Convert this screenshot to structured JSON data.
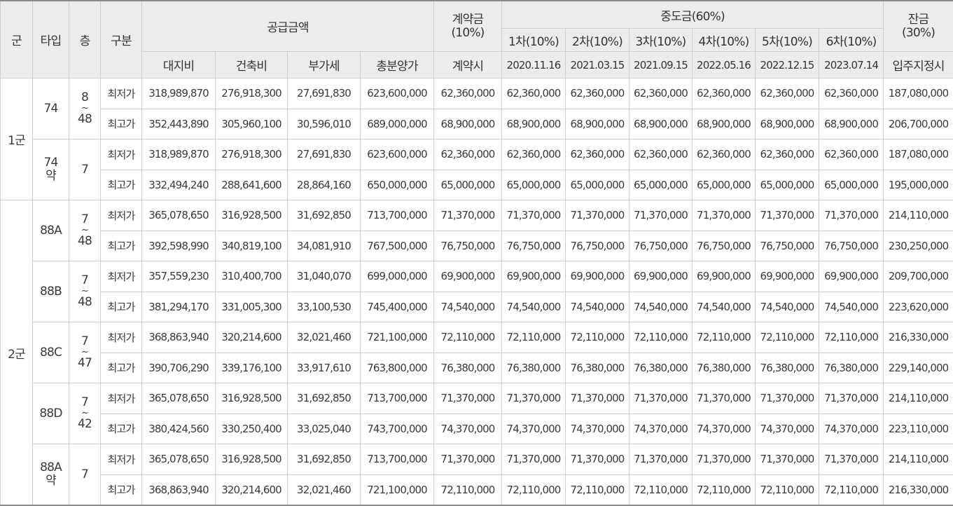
{
  "header": {
    "group": "군",
    "type": "타입",
    "floor": "층",
    "category": "구분",
    "supply": "공급금액",
    "supply_cols": [
      "대지비",
      "건축비",
      "부가세",
      "총분양가"
    ],
    "contract_l1": "계약금",
    "contract_l2": "(10%)",
    "contract_sub": "계약시",
    "middle": "중도금(60%)",
    "middle_cols": [
      "1차(10%)",
      "2차(10%)",
      "3차(10%)",
      "4차(10%)",
      "5차(10%)",
      "6차(10%)"
    ],
    "middle_dates": [
      "2020.11.16",
      "2021.03.15",
      "2021.09.15",
      "2022.05.16",
      "2022.12.15",
      "2023.07.14"
    ],
    "balance_l1": "잔금",
    "balance_l2": "(30%)",
    "balance_sub": "입주지정시"
  },
  "groups": [
    {
      "label": "1군",
      "types": [
        {
          "type_l1": "74",
          "type_l2": "",
          "floor_top": "8",
          "floor_tilde": "~",
          "floor_bottom": "48",
          "rows": [
            {
              "kind": "최저가",
              "land": "318,989,870",
              "build": "276,918,300",
              "vat": "27,691,830",
              "total": "623,600,000",
              "contract": "62,360,000",
              "m1": "62,360,000",
              "m2": "62,360,000",
              "m3": "62,360,000",
              "m4": "62,360,000",
              "m5": "62,360,000",
              "m6": "62,360,000",
              "balance": "187,080,000"
            },
            {
              "kind": "최고가",
              "land": "352,443,890",
              "build": "305,960,100",
              "vat": "30,596,010",
              "total": "689,000,000",
              "contract": "68,900,000",
              "m1": "68,900,000",
              "m2": "68,900,000",
              "m3": "68,900,000",
              "m4": "68,900,000",
              "m5": "68,900,000",
              "m6": "68,900,000",
              "balance": "206,700,000"
            }
          ]
        },
        {
          "type_l1": "74",
          "type_l2": "약",
          "floor_top": "7",
          "floor_tilde": "",
          "floor_bottom": "",
          "rows": [
            {
              "kind": "최저가",
              "land": "318,989,870",
              "build": "276,918,300",
              "vat": "27,691,830",
              "total": "623,600,000",
              "contract": "62,360,000",
              "m1": "62,360,000",
              "m2": "62,360,000",
              "m3": "62,360,000",
              "m4": "62,360,000",
              "m5": "62,360,000",
              "m6": "62,360,000",
              "balance": "187,080,000"
            },
            {
              "kind": "최고가",
              "land": "332,494,240",
              "build": "288,641,600",
              "vat": "28,864,160",
              "total": "650,000,000",
              "contract": "65,000,000",
              "m1": "65,000,000",
              "m2": "65,000,000",
              "m3": "65,000,000",
              "m4": "65,000,000",
              "m5": "65,000,000",
              "m6": "65,000,000",
              "balance": "195,000,000"
            }
          ]
        }
      ]
    },
    {
      "label": "2군",
      "types": [
        {
          "type_l1": "88A",
          "type_l2": "",
          "floor_top": "7",
          "floor_tilde": "~",
          "floor_bottom": "48",
          "rows": [
            {
              "kind": "최저가",
              "land": "365,078,650",
              "build": "316,928,500",
              "vat": "31,692,850",
              "total": "713,700,000",
              "contract": "71,370,000",
              "m1": "71,370,000",
              "m2": "71,370,000",
              "m3": "71,370,000",
              "m4": "71,370,000",
              "m5": "71,370,000",
              "m6": "71,370,000",
              "balance": "214,110,000"
            },
            {
              "kind": "최고가",
              "land": "392,598,990",
              "build": "340,819,100",
              "vat": "34,081,910",
              "total": "767,500,000",
              "contract": "76,750,000",
              "m1": "76,750,000",
              "m2": "76,750,000",
              "m3": "76,750,000",
              "m4": "76,750,000",
              "m5": "76,750,000",
              "m6": "76,750,000",
              "balance": "230,250,000"
            }
          ]
        },
        {
          "type_l1": "88B",
          "type_l2": "",
          "floor_top": "7",
          "floor_tilde": "~",
          "floor_bottom": "48",
          "rows": [
            {
              "kind": "최저가",
              "land": "357,559,230",
              "build": "310,400,700",
              "vat": "31,040,070",
              "total": "699,000,000",
              "contract": "69,900,000",
              "m1": "69,900,000",
              "m2": "69,900,000",
              "m3": "69,900,000",
              "m4": "69,900,000",
              "m5": "69,900,000",
              "m6": "69,900,000",
              "balance": "209,700,000"
            },
            {
              "kind": "최고가",
              "land": "381,294,170",
              "build": "331,005,300",
              "vat": "33,100,530",
              "total": "745,400,000",
              "contract": "74,540,000",
              "m1": "74,540,000",
              "m2": "74,540,000",
              "m3": "74,540,000",
              "m4": "74,540,000",
              "m5": "74,540,000",
              "m6": "74,540,000",
              "balance": "223,620,000"
            }
          ]
        },
        {
          "type_l1": "88C",
          "type_l2": "",
          "floor_top": "7",
          "floor_tilde": "~",
          "floor_bottom": "47",
          "rows": [
            {
              "kind": "최저가",
              "land": "368,863,940",
              "build": "320,214,600",
              "vat": "32,021,460",
              "total": "721,100,000",
              "contract": "72,110,000",
              "m1": "72,110,000",
              "m2": "72,110,000",
              "m3": "72,110,000",
              "m4": "72,110,000",
              "m5": "72,110,000",
              "m6": "72,110,000",
              "balance": "216,330,000"
            },
            {
              "kind": "최고가",
              "land": "390,706,290",
              "build": "339,176,100",
              "vat": "33,917,610",
              "total": "763,800,000",
              "contract": "76,380,000",
              "m1": "76,380,000",
              "m2": "76,380,000",
              "m3": "76,380,000",
              "m4": "76,380,000",
              "m5": "76,380,000",
              "m6": "76,380,000",
              "balance": "229,140,000"
            }
          ]
        },
        {
          "type_l1": "88D",
          "type_l2": "",
          "floor_top": "7",
          "floor_tilde": "~",
          "floor_bottom": "42",
          "rows": [
            {
              "kind": "최저가",
              "land": "365,078,650",
              "build": "316,928,500",
              "vat": "31,692,850",
              "total": "713,700,000",
              "contract": "71,370,000",
              "m1": "71,370,000",
              "m2": "71,370,000",
              "m3": "71,370,000",
              "m4": "71,370,000",
              "m5": "71,370,000",
              "m6": "71,370,000",
              "balance": "214,110,000"
            },
            {
              "kind": "최고가",
              "land": "380,424,560",
              "build": "330,250,400",
              "vat": "33,025,040",
              "total": "743,700,000",
              "contract": "74,370,000",
              "m1": "74,370,000",
              "m2": "74,370,000",
              "m3": "74,370,000",
              "m4": "74,370,000",
              "m5": "74,370,000",
              "m6": "74,370,000",
              "balance": "223,110,000"
            }
          ]
        },
        {
          "type_l1": "88A",
          "type_l2": "약",
          "floor_top": "7",
          "floor_tilde": "",
          "floor_bottom": "",
          "rows": [
            {
              "kind": "최저가",
              "land": "365,078,650",
              "build": "316,928,500",
              "vat": "31,692,850",
              "total": "713,700,000",
              "contract": "71,370,000",
              "m1": "71,370,000",
              "m2": "71,370,000",
              "m3": "71,370,000",
              "m4": "71,370,000",
              "m5": "71,370,000",
              "m6": "71,370,000",
              "balance": "214,110,000"
            },
            {
              "kind": "최고가",
              "land": "368,863,940",
              "build": "320,214,600",
              "vat": "32,021,460",
              "total": "721,100,000",
              "contract": "72,110,000",
              "m1": "72,110,000",
              "m2": "72,110,000",
              "m3": "72,110,000",
              "m4": "72,110,000",
              "m5": "72,110,000",
              "m6": "72,110,000",
              "balance": "216,330,000"
            }
          ]
        }
      ]
    }
  ]
}
